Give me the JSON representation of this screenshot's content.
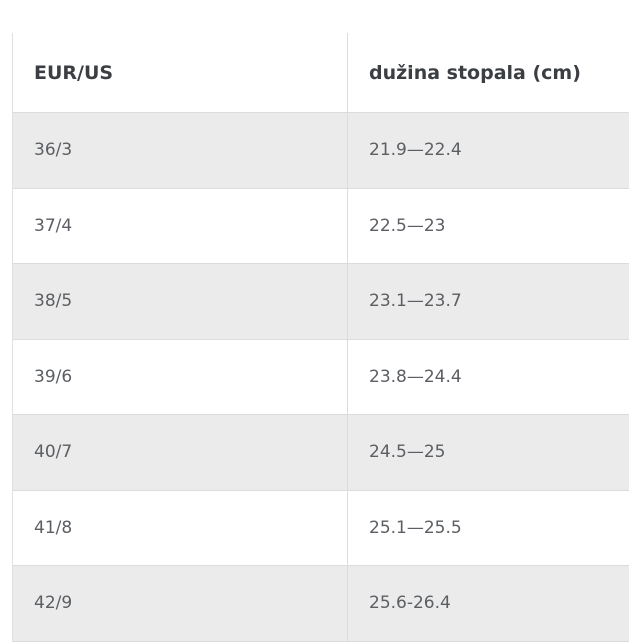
{
  "table": {
    "header": [
      "EUR/US",
      "dužina stopala (cm)"
    ],
    "rows": [
      [
        "36/3",
        "21.9—22.4"
      ],
      [
        "37/4",
        "22.5—23"
      ],
      [
        "38/5",
        "23.1—23.7"
      ],
      [
        "39/6",
        "23.8—24.4"
      ],
      [
        "40/7",
        "24.5—25"
      ],
      [
        "41/8",
        "25.1—25.5"
      ],
      [
        "42/9",
        "25.6-26.4"
      ]
    ]
  }
}
